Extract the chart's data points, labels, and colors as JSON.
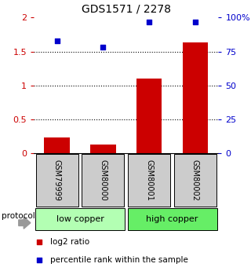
{
  "title": "GDS1571 / 2278",
  "samples": [
    "GSM79999",
    "GSM80000",
    "GSM80001",
    "GSM80002"
  ],
  "log2_ratio": [
    0.23,
    0.13,
    1.1,
    1.63
  ],
  "percentile_rank": [
    83,
    78,
    97,
    97
  ],
  "groups": [
    {
      "label": "low copper",
      "indices": [
        0,
        1
      ],
      "color": "#b3ffb3"
    },
    {
      "label": "high copper",
      "indices": [
        2,
        3
      ],
      "color": "#66ee66"
    }
  ],
  "bar_color": "#cc0000",
  "point_color": "#0000cc",
  "left_ylim": [
    0,
    2
  ],
  "right_ylim": [
    0,
    100
  ],
  "left_yticks": [
    0,
    0.5,
    1.0,
    1.5,
    2.0
  ],
  "left_yticklabels": [
    "0",
    "0.5",
    "1",
    "1.5",
    "2"
  ],
  "right_yticks": [
    0,
    25,
    50,
    75,
    100
  ],
  "right_yticklabels": [
    "0",
    "25",
    "50",
    "75",
    "100%"
  ],
  "dotted_lines": [
    0.5,
    1.0,
    1.5
  ],
  "left_tick_color": "#cc0000",
  "right_tick_color": "#0000cc",
  "legend_items": [
    {
      "label": "log2 ratio",
      "color": "#cc0000"
    },
    {
      "label": "percentile rank within the sample",
      "color": "#0000cc"
    }
  ],
  "protocol_label": "protocol",
  "bar_width": 0.55,
  "background_color": "#ffffff",
  "sample_box_color": "#cccccc"
}
